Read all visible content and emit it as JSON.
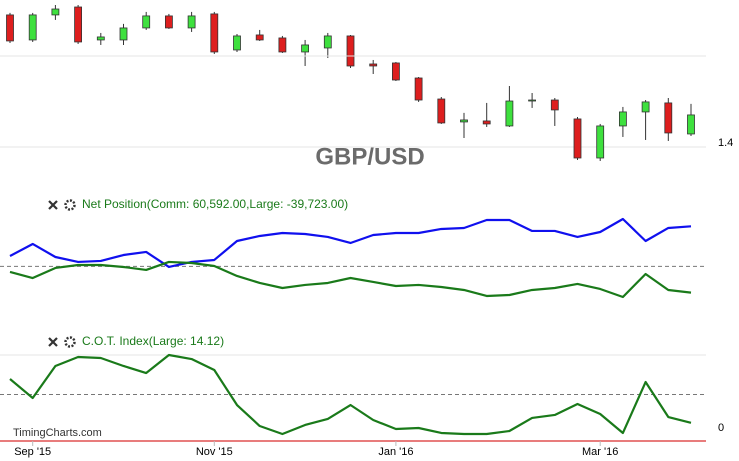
{
  "watermark": "TimingCharts.com",
  "chart_data": [
    {
      "type": "candlestick",
      "title": "GBP/USD",
      "categories": [
        null,
        "Sep '15",
        null,
        null,
        null,
        null,
        null,
        null,
        null,
        "Nov '15",
        null,
        null,
        null,
        null,
        null,
        null,
        null,
        "Jan '16",
        null,
        null,
        null,
        null,
        null,
        null,
        null,
        null,
        "Mar '16",
        null,
        null,
        null,
        null
      ],
      "open": [
        1.5451,
        1.5176,
        1.5451,
        1.5538,
        1.5176,
        1.5176,
        1.5308,
        1.544,
        1.5308,
        1.5462,
        1.5066,
        1.5231,
        1.5198,
        1.5044,
        1.5088,
        1.522,
        1.4912,
        1.4923,
        1.4758,
        1.4527,
        1.4275,
        1.4286,
        1.4231,
        1.4505,
        1.4516,
        1.4308,
        1.3879,
        1.4231,
        1.4385,
        1.4484,
        1.4143
      ],
      "high": [
        1.5473,
        1.5473,
        1.556,
        1.556,
        1.5253,
        1.5352,
        1.5484,
        1.5462,
        1.5484,
        1.5484,
        1.5242,
        1.5286,
        1.522,
        1.5176,
        1.5253,
        1.5231,
        1.4956,
        1.4934,
        1.4769,
        1.4549,
        1.4374,
        1.4484,
        1.467,
        1.4593,
        1.4538,
        1.433,
        1.4253,
        1.444,
        1.4516,
        1.4538,
        1.4473
      ],
      "low": [
        1.5143,
        1.5154,
        1.5396,
        1.5132,
        1.5121,
        1.5121,
        1.5286,
        1.5297,
        1.5264,
        1.5022,
        1.5044,
        1.5165,
        1.5033,
        1.489,
        1.4978,
        1.4868,
        1.4802,
        1.4725,
        1.4495,
        1.4253,
        1.4099,
        1.422,
        1.422,
        1.4429,
        1.4231,
        1.3857,
        1.3846,
        1.411,
        1.4077,
        1.4066,
        1.4121
      ],
      "close": [
        1.5165,
        1.5451,
        1.5516,
        1.5154,
        1.5209,
        1.5308,
        1.544,
        1.5308,
        1.544,
        1.5044,
        1.522,
        1.5176,
        1.5044,
        1.5121,
        1.522,
        1.489,
        1.489,
        1.4736,
        1.4516,
        1.4264,
        1.4297,
        1.4253,
        1.4505,
        1.4516,
        1.4407,
        1.3879,
        1.4231,
        1.4385,
        1.4495,
        1.4154,
        1.4352
      ],
      "up_color": "#3ee03e",
      "down_color": "#dd1e1e",
      "ylim": [
        1.3692,
        1.5615
      ],
      "yticks": [
        1.4
      ],
      "grid": true
    },
    {
      "type": "line",
      "title": "Net Position(Comm: 60,592.00,Large: -39,723.00)",
      "title_color": "#1a7a1a",
      "series": [
        {
          "color": "#1010ee",
          "values": [
            15700,
            33900,
            14200,
            6700,
            8200,
            17200,
            21800,
            -900,
            6700,
            9700,
            38400,
            46000,
            50500,
            49000,
            44500,
            35400,
            47500,
            50500,
            50500,
            56600,
            58100,
            70200,
            70200,
            53600,
            53600,
            44500,
            52000,
            71700,
            38400,
            58100,
            60592
          ]
        },
        {
          "color": "#1a7a1a",
          "values": [
            -8500,
            -17600,
            -2400,
            2100,
            2100,
            -900,
            -5400,
            6700,
            5100,
            600,
            -14500,
            -25100,
            -32700,
            -28100,
            -25100,
            -17600,
            -23600,
            -29700,
            -28100,
            -31200,
            -35700,
            -44800,
            -43300,
            -35700,
            -32700,
            -26600,
            -34200,
            -46300,
            -11500,
            -35700,
            -39723
          ]
        }
      ],
      "ylim": [
        -66000,
        108000
      ]
    },
    {
      "type": "line",
      "title": "C.O.T. Index(Large: 14.12)",
      "title_color": "#1a7a1a",
      "series": [
        {
          "color": "#1a7a1a",
          "values": [
            69.6,
            45.6,
            86.1,
            97.5,
            96.2,
            86.1,
            77.2,
            100,
            94.9,
            81.0,
            36.7,
            10.1,
            0,
            11.4,
            19.0,
            36.7,
            17.7,
            6.3,
            7.6,
            1.3,
            0,
            0,
            3.8,
            20.3,
            24.1,
            38.0,
            25.3,
            1.3,
            65.8,
            21.5,
            14.12
          ]
        }
      ],
      "ylim": [
        0,
        100
      ],
      "yticks": [
        0
      ]
    }
  ]
}
